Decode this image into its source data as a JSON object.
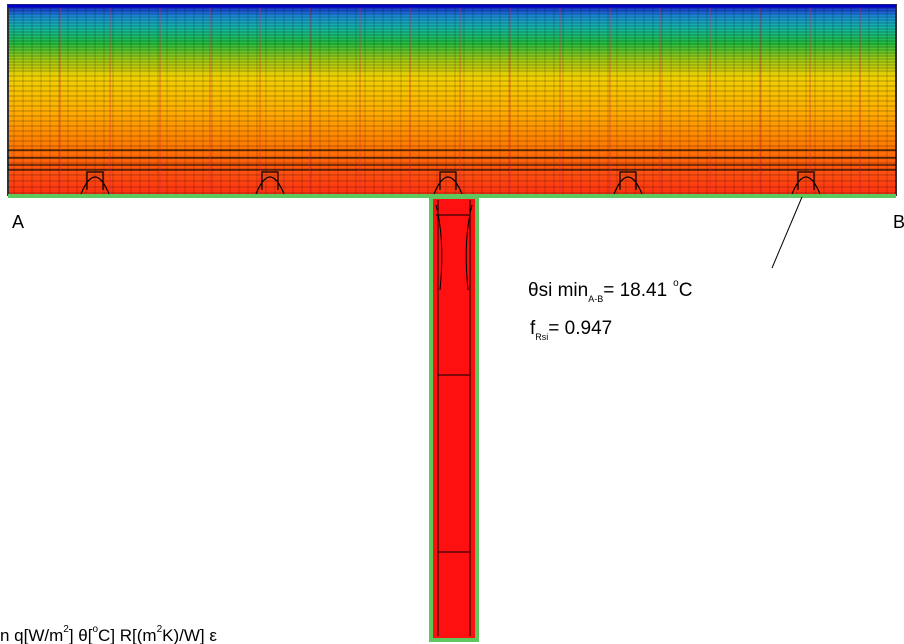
{
  "labels": {
    "point_a": "A",
    "point_b": "B"
  },
  "annotation": {
    "theta": {
      "symbol": "θ",
      "name": "si min",
      "subscript": "A-B",
      "value": "= 18.41",
      "degree": "o",
      "unit": "C"
    },
    "frsi": {
      "name": "f",
      "subscript": "Rsi",
      "value": "= 0.947"
    }
  },
  "legend": {
    "items": [
      "n  q[W/m",
      "2",
      "]   θ[",
      "o",
      "C]   R[(m",
      "2",
      "K)/W]   ε"
    ]
  }
}
